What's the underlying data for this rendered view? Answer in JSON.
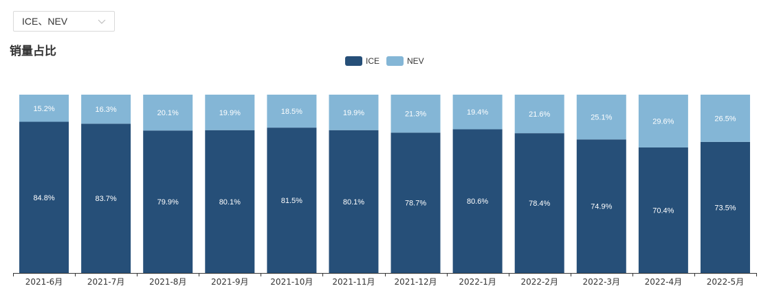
{
  "selector": {
    "value": "ICE、NEV"
  },
  "chart_title": "销量占比",
  "chart_data": {
    "type": "bar",
    "stacked": true,
    "title": "销量占比",
    "categories": [
      "2021-6月",
      "2021-7月",
      "2021-8月",
      "2021-9月",
      "2021-10月",
      "2021-11月",
      "2021-12月",
      "2022-1月",
      "2022-2月",
      "2022-3月",
      "2022-4月",
      "2022-5月"
    ],
    "series": [
      {
        "name": "ICE",
        "color": "#264f78",
        "values": [
          84.8,
          83.7,
          79.9,
          80.1,
          81.5,
          80.1,
          78.7,
          80.6,
          78.4,
          74.9,
          70.4,
          73.5
        ]
      },
      {
        "name": "NEV",
        "color": "#84b6d6",
        "values": [
          15.2,
          16.3,
          20.1,
          19.9,
          18.5,
          19.9,
          21.3,
          19.4,
          21.6,
          25.1,
          29.6,
          26.5
        ]
      }
    ],
    "labels": {
      "ICE": [
        "84.8%",
        "83.7%",
        "79.9%",
        "80.1%",
        "81.5%",
        "80.1%",
        "78.7%",
        "80.6%",
        "78.4%",
        "74.9%",
        "70.4%",
        "73.5%"
      ],
      "NEV": [
        "15.2%",
        "16.3%",
        "20.1%",
        "19.9%",
        "18.5%",
        "19.9%",
        "21.3%",
        "19.4%",
        "21.6%",
        "25.1%",
        "29.6%",
        "26.5%"
      ]
    },
    "ylim": [
      0,
      100
    ],
    "legend_position": "top-center",
    "grid": false
  }
}
